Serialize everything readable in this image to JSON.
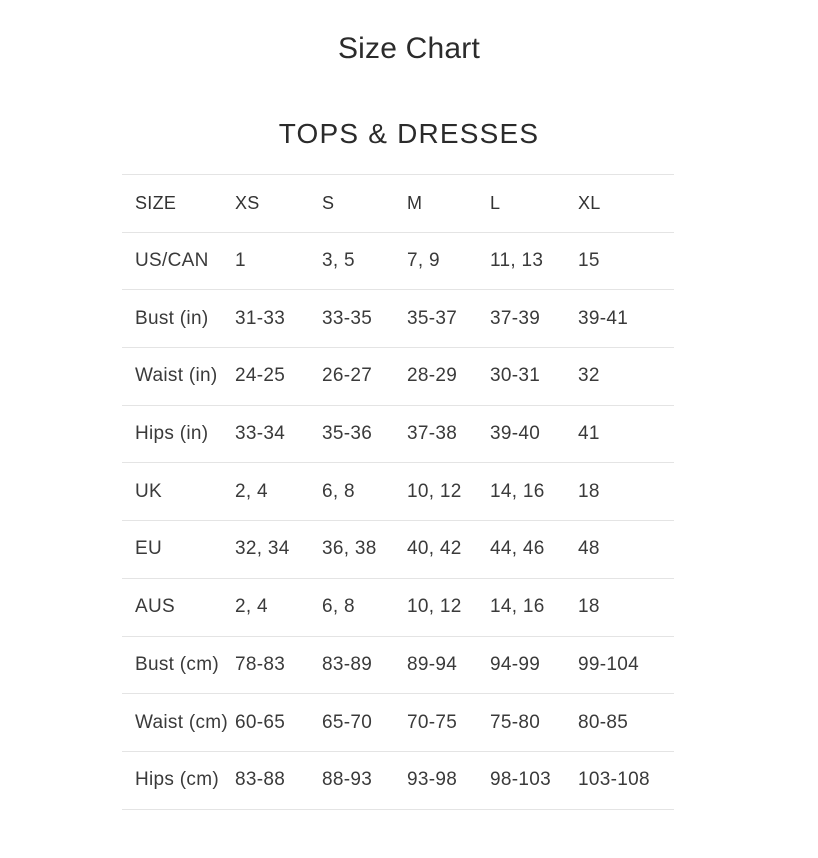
{
  "page": {
    "title": "Size Chart",
    "section_title": "TOPS & DRESSES"
  },
  "size_table": {
    "columns": [
      "SIZE",
      "XS",
      "S",
      "M",
      "L",
      "XL"
    ],
    "rows": [
      {
        "label": "US/CAN",
        "values": [
          "1",
          "3, 5",
          "7, 9",
          "11, 13",
          "15"
        ]
      },
      {
        "label": "Bust (in)",
        "values": [
          "31-33",
          "33-35",
          "35-37",
          "37-39",
          "39-41"
        ]
      },
      {
        "label": "Waist (in)",
        "values": [
          "24-25",
          "26-27",
          "28-29",
          "30-31",
          "32"
        ]
      },
      {
        "label": "Hips (in)",
        "values": [
          "33-34",
          "35-36",
          "37-38",
          "39-40",
          "41"
        ]
      },
      {
        "label": "UK",
        "values": [
          "2, 4",
          "6, 8",
          "10, 12",
          "14, 16",
          "18"
        ]
      },
      {
        "label": "EU",
        "values": [
          "32, 34",
          "36, 38",
          "40, 42",
          "44, 46",
          "48"
        ]
      },
      {
        "label": "AUS",
        "values": [
          "2, 4",
          "6, 8",
          "10, 12",
          "14, 16",
          "18"
        ]
      },
      {
        "label": "Bust (cm)",
        "values": [
          "78-83",
          "83-89",
          "89-94",
          "94-99",
          "99-104"
        ]
      },
      {
        "label": "Waist (cm)",
        "values": [
          "60-65",
          "65-70",
          "70-75",
          "75-80",
          "80-85"
        ]
      },
      {
        "label": "Hips (cm)",
        "values": [
          "83-88",
          "88-93",
          "93-98",
          "98-103",
          "103-108"
        ]
      }
    ]
  },
  "chart_data": {
    "type": "table",
    "title": "Size Chart",
    "subtitle": "TOPS & DRESSES",
    "columns": [
      "SIZE",
      "XS",
      "S",
      "M",
      "L",
      "XL"
    ],
    "rows": [
      [
        "US/CAN",
        "1",
        "3, 5",
        "7, 9",
        "11, 13",
        "15"
      ],
      [
        "Bust (in)",
        "31-33",
        "33-35",
        "35-37",
        "37-39",
        "39-41"
      ],
      [
        "Waist (in)",
        "24-25",
        "26-27",
        "28-29",
        "30-31",
        "32"
      ],
      [
        "Hips (in)",
        "33-34",
        "35-36",
        "37-38",
        "39-40",
        "41"
      ],
      [
        "UK",
        "2, 4",
        "6, 8",
        "10, 12",
        "14, 16",
        "18"
      ],
      [
        "EU",
        "32, 34",
        "36, 38",
        "40, 42",
        "44, 46",
        "48"
      ],
      [
        "AUS",
        "2, 4",
        "6, 8",
        "10, 12",
        "14, 16",
        "18"
      ],
      [
        "Bust (cm)",
        "78-83",
        "83-89",
        "89-94",
        "94-99",
        "99-104"
      ],
      [
        "Waist (cm)",
        "60-65",
        "65-70",
        "70-75",
        "75-80",
        "80-85"
      ],
      [
        "Hips (cm)",
        "83-88",
        "88-93",
        "93-98",
        "98-103",
        "103-108"
      ]
    ]
  },
  "colors": {
    "background": "#ffffff",
    "heading_text": "#2b2b2b",
    "table_text": "#3a3a3a",
    "divider": "#e4e4e4"
  }
}
